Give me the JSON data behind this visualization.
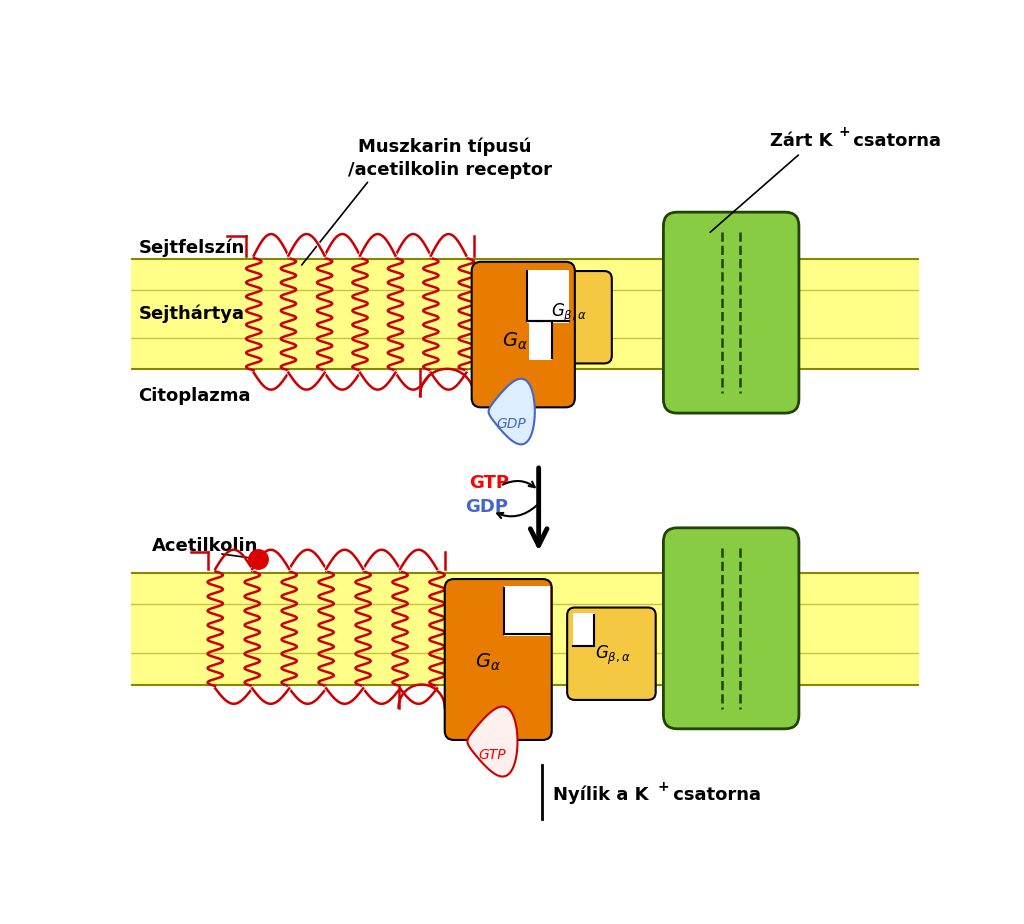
{
  "bg_color": "#ffffff",
  "membrane_color": "#ffff88",
  "membrane_border_color": "#888800",
  "coil_color": "#cc0000",
  "ga_color": "#e87c00",
  "gb_color": "#f5c842",
  "green_channel_color": "#88cc44",
  "green_channel_border": "#224400",
  "gdp_color": "#ddeeff",
  "gdp_border": "#4466cc",
  "gtp_drop_color": "#fff0f0",
  "gtp_drop_border": "#cc0000",
  "label_sejtfelszin": "Sejtfelszín",
  "label_sejthartya": "Sejthártya",
  "label_citoplazma": "Citoplazma",
  "label_acetilkolin": "Acetilkolin",
  "label_muszkarin_line1": "Muszkarin típusú",
  "label_muszkarin_line2": "/acetilkolin receptor",
  "label_zart_k": "Zárt K",
  "label_csatorna": " csatorna",
  "label_nyilik": "Nyílik a K",
  "label_gtp": "GTP",
  "label_gdp": "GDP"
}
